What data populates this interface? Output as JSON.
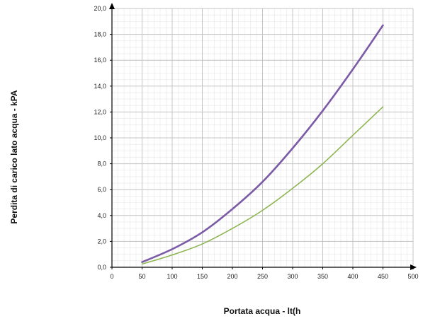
{
  "chart_data": {
    "type": "line",
    "title": "",
    "xlabel": "Portata acqua - lt(h",
    "ylabel": "Perdita di carico lato acqua - kPA",
    "xlim": [
      0,
      500
    ],
    "ylim": [
      0,
      20
    ],
    "x_ticks": [
      "0",
      "50",
      "100",
      "150",
      "200",
      "250",
      "300",
      "350",
      "400",
      "450",
      "500"
    ],
    "y_ticks": [
      "0,0",
      "2,0",
      "4,0",
      "6,0",
      "8,0",
      "10,0",
      "12,0",
      "14,0",
      "16,0",
      "18,0",
      "20,0"
    ],
    "grid": true,
    "legend": "none",
    "series": [
      {
        "color": "#7b5aa6",
        "x": [
          50,
          100,
          150,
          200,
          250,
          300,
          350,
          400,
          450
        ],
        "values": [
          0.4,
          1.4,
          2.7,
          4.5,
          6.6,
          9.2,
          12.1,
          15.3,
          18.7
        ]
      },
      {
        "color": "#8db651",
        "x": [
          50,
          100,
          150,
          200,
          250,
          300,
          350,
          400,
          450
        ],
        "values": [
          0.25,
          0.95,
          1.8,
          3.0,
          4.4,
          6.1,
          8.0,
          10.2,
          12.4
        ]
      }
    ]
  }
}
